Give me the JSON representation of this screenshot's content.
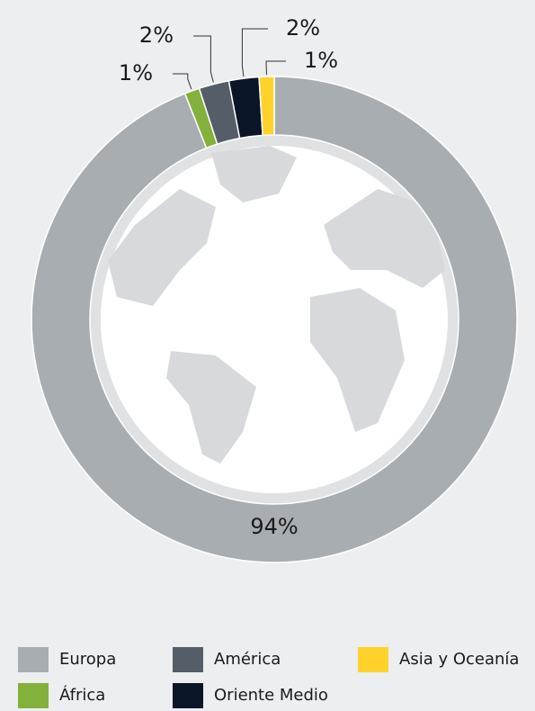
{
  "chart_data": {
    "type": "donut",
    "categories": [
      "Europa",
      "África",
      "América",
      "Oriente Medio",
      "Asia y Oceanía"
    ],
    "values": [
      94,
      1,
      2,
      2,
      1
    ],
    "value_labels": [
      "94%",
      "1%",
      "2%",
      "2%",
      "1%"
    ],
    "colors": [
      "#a8adb2",
      "#84b03c",
      "#555e68",
      "#0b1528",
      "#ffd22b"
    ]
  }
}
